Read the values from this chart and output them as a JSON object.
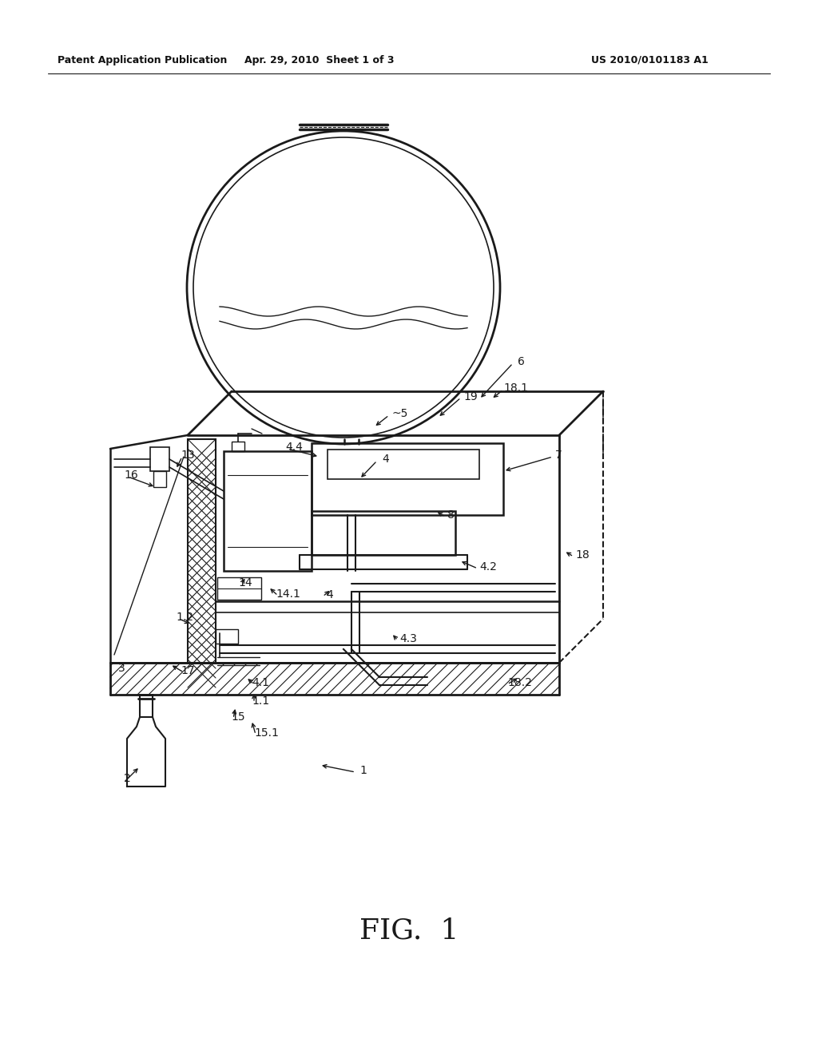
{
  "bg_color": "#ffffff",
  "header_left": "Patent Application Publication",
  "header_center": "Apr. 29, 2010  Sheet 1 of 3",
  "header_right": "US 2010/0101183 A1",
  "figure_label": "FIG.  1",
  "line_color": "#1a1a1a"
}
